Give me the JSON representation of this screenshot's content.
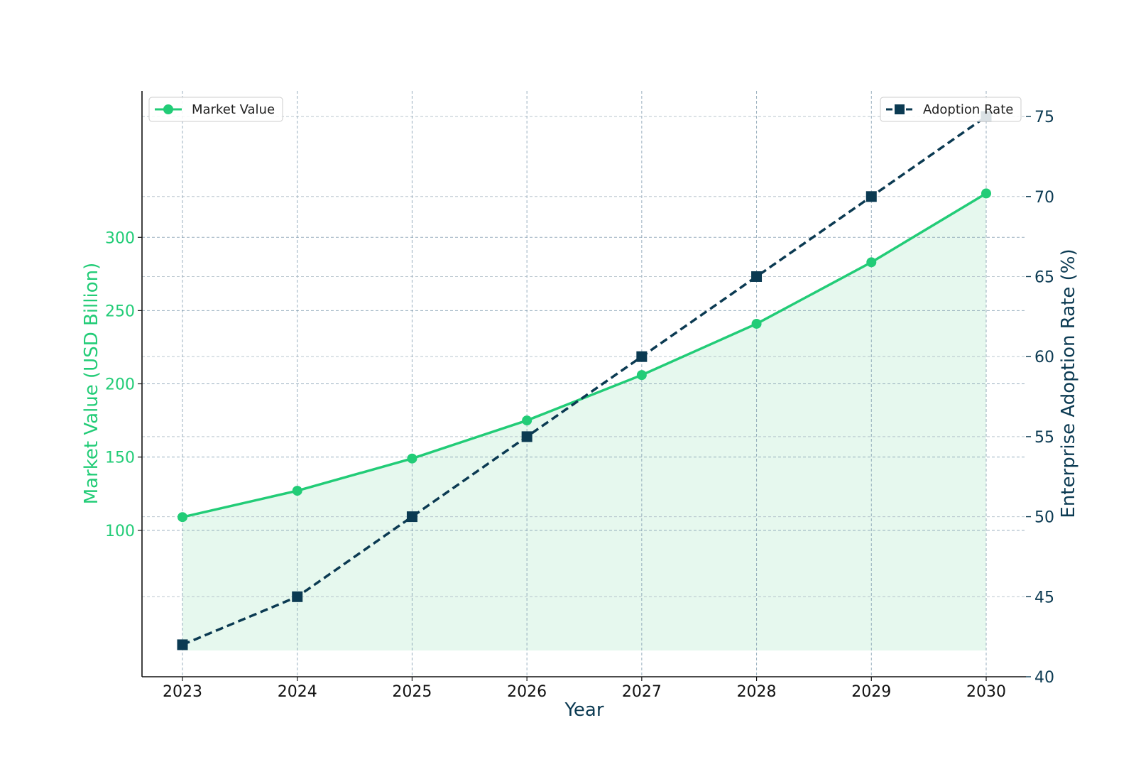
{
  "colors": {
    "market_value": "#22cc77",
    "adoption_rate": "#0b3a52",
    "fill": "#e6f8ee",
    "grid": "#7f9aae",
    "axis": "#111111"
  },
  "chart_data": {
    "type": "line",
    "x": [
      "2023",
      "2024",
      "2025",
      "2026",
      "2027",
      "2028",
      "2029",
      "2030"
    ],
    "xlabel": "Year",
    "series": [
      {
        "name": "Market Value",
        "axis": "left",
        "marker": "circle",
        "line_style": "solid",
        "area_fill": true,
        "values": [
          109,
          127,
          149,
          175,
          206,
          241,
          283,
          330
        ]
      },
      {
        "name": "Adoption Rate",
        "axis": "right",
        "marker": "square",
        "line_style": "dashed",
        "values": [
          42,
          45,
          50,
          55,
          60,
          65,
          70,
          75
        ]
      }
    ],
    "y_left": {
      "label": "Market Value (USD Billion)",
      "ticks": [
        "100",
        "150",
        "200",
        "250",
        "300"
      ],
      "tick_values": [
        100,
        150,
        200,
        250,
        300
      ],
      "range": [
        0,
        400
      ]
    },
    "y_right": {
      "label": "Enterprise Adoption Rate (%)",
      "ticks": [
        "40",
        "45",
        "50",
        "55",
        "60",
        "65",
        "70",
        "75"
      ],
      "tick_values": [
        40,
        45,
        50,
        55,
        60,
        65,
        70,
        75
      ],
      "range": [
        40,
        76.6
      ]
    },
    "grid": true,
    "legends": [
      {
        "series": "Market Value",
        "placement": "top-left"
      },
      {
        "series": "Adoption Rate",
        "placement": "top-right"
      }
    ]
  }
}
